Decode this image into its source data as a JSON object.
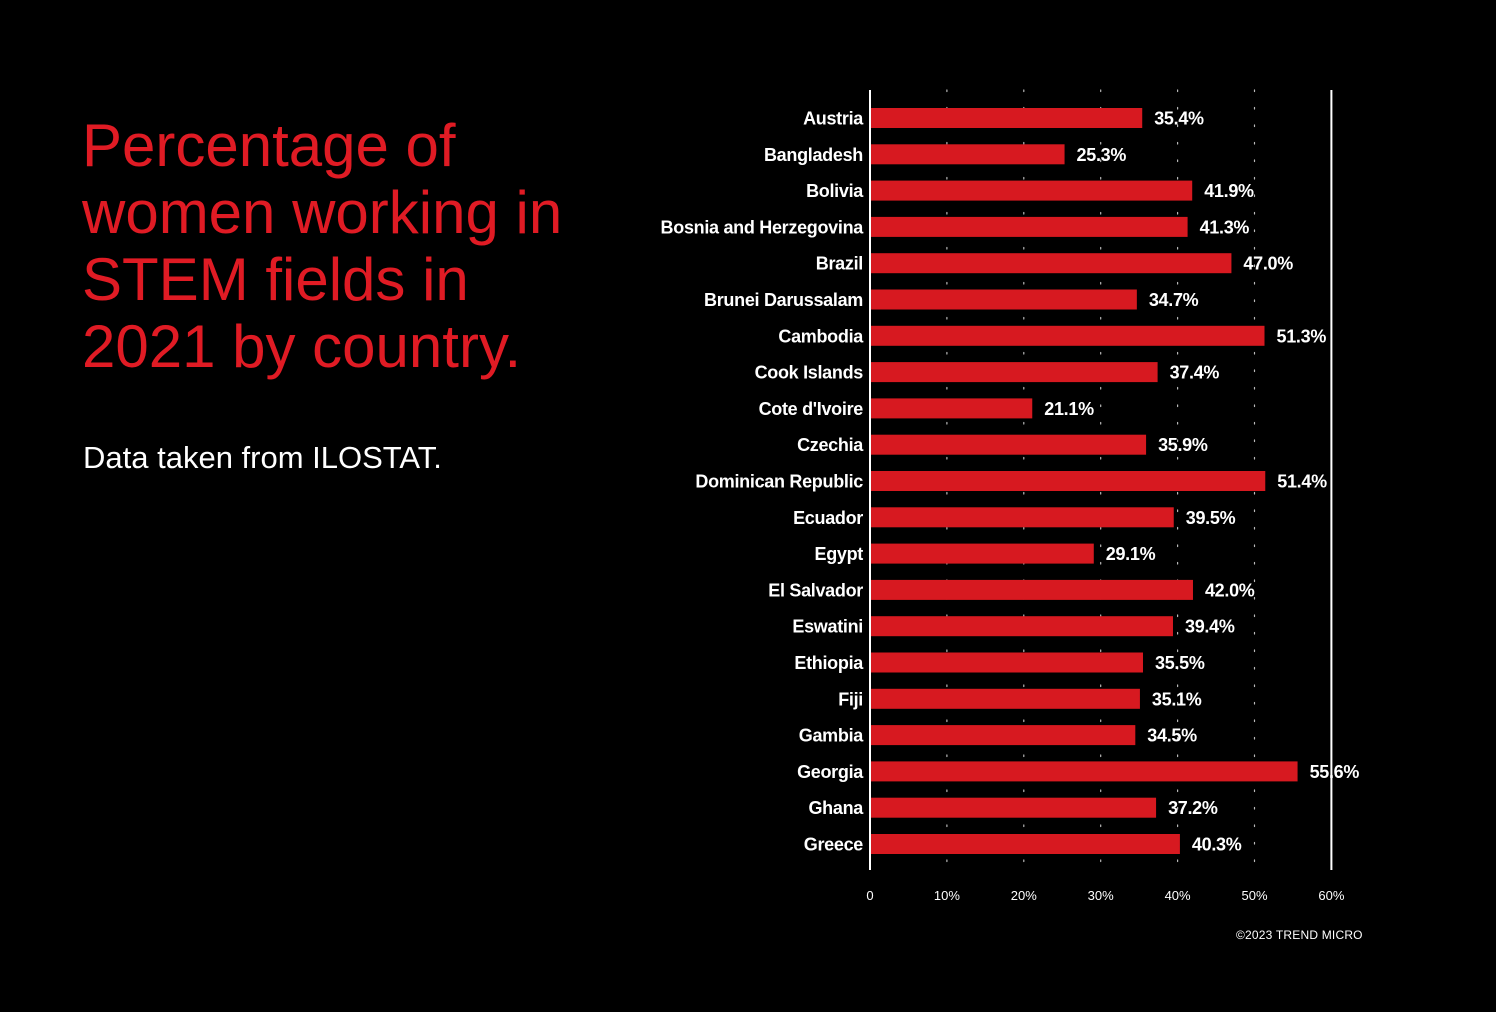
{
  "title": "Percentage of women working in STEM fields in 2021 by country.",
  "subtitle": "Data taken from ILOSTAT.",
  "credit": "©2023 TREND MICRO",
  "colors": {
    "background": "#000000",
    "bar": "#d71920",
    "title": "#e01b24",
    "text": "#ffffff"
  },
  "chart_data": {
    "type": "bar",
    "orientation": "horizontal",
    "categories": [
      "Austria",
      "Bangladesh",
      "Bolivia",
      "Bosnia and Herzegovina",
      "Brazil",
      "Brunei Darussalam",
      "Cambodia",
      "Cook Islands",
      "Cote d'Ivoire",
      "Czechia",
      "Dominican Republic",
      "Ecuador",
      "Egypt",
      "El Salvador",
      "Eswatini",
      "Ethiopia",
      "Fiji",
      "Gambia",
      "Georgia",
      "Ghana",
      "Greece"
    ],
    "values": [
      35.4,
      25.3,
      41.9,
      41.3,
      47.0,
      34.7,
      51.3,
      37.4,
      21.1,
      35.9,
      51.4,
      39.5,
      29.1,
      42.0,
      39.4,
      35.5,
      35.1,
      34.5,
      55.6,
      37.2,
      40.3
    ],
    "value_labels": [
      "35.4%",
      "25.3%",
      "41.9%",
      "41.3%",
      "47.0%",
      "34.7%",
      "51.3%",
      "37.4%",
      "21.1%",
      "35.9%",
      "51.4%",
      "39.5%",
      "29.1%",
      "42.0%",
      "39.4%",
      "35.5%",
      "35.1%",
      "34.5%",
      "55.6%",
      "37.2%",
      "40.3%"
    ],
    "x_ticks": [
      0,
      10,
      20,
      30,
      40,
      50,
      60
    ],
    "x_tick_labels": [
      "0",
      "10%",
      "20%",
      "30%",
      "40%",
      "50%",
      "60%"
    ],
    "xlim": [
      0,
      60
    ],
    "grid": "dotted vertical",
    "xlabel": "",
    "ylabel": ""
  }
}
